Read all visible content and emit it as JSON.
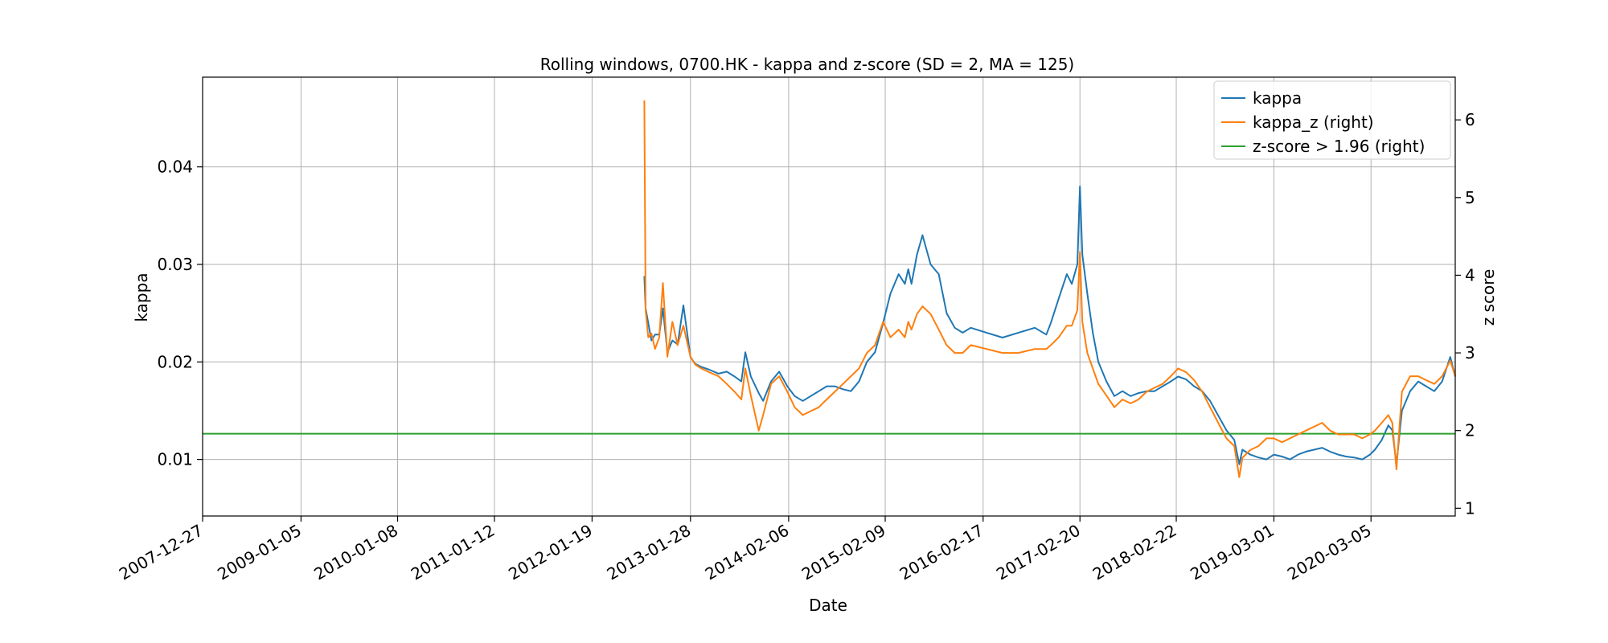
{
  "chart_data": {
    "type": "line",
    "title": "Rolling windows, 0700.HK - kappa and z-score (SD = 2, MA = 125)",
    "xlabel": "Date",
    "ylabel": "kappa",
    "y2label": "z score",
    "x_ticks": [
      "2007-12-27",
      "2009-01-05",
      "2010-01-08",
      "2011-01-12",
      "2012-01-19",
      "2013-01-28",
      "2014-02-06",
      "2015-02-09",
      "2016-02-17",
      "2017-02-20",
      "2018-02-22",
      "2019-03-01",
      "2020-03-05"
    ],
    "y_ticks": [
      "0.01",
      "0.02",
      "0.03",
      "0.04"
    ],
    "y2_ticks": [
      "1",
      "2",
      "3",
      "4",
      "5",
      "6"
    ],
    "xlim": [
      "2007-12-27",
      "2021-01-20"
    ],
    "ylim": [
      0.0042,
      0.0492
    ],
    "y2lim": [
      0.9,
      6.55
    ],
    "grid": true,
    "legend_position": "top-right",
    "colors": {
      "kappa": "#1f77b4",
      "kappa_z": "#ff7f0e",
      "threshold": "#2ca02c",
      "grid": "#b0b0b0"
    },
    "series": [
      {
        "name": "kappa",
        "axis": "left",
        "x": [
          "2012-08-05",
          "2012-08-10",
          "2012-08-20",
          "2012-09-01",
          "2012-09-15",
          "2012-10-01",
          "2012-10-15",
          "2012-11-01",
          "2012-11-20",
          "2012-12-10",
          "2013-01-01",
          "2013-01-28",
          "2013-02-15",
          "2013-03-10",
          "2013-04-10",
          "2013-05-15",
          "2013-06-15",
          "2013-07-15",
          "2013-08-10",
          "2013-08-25",
          "2013-09-15",
          "2013-10-15",
          "2013-11-01",
          "2013-12-01",
          "2014-01-01",
          "2014-02-01",
          "2014-03-01",
          "2014-04-01",
          "2014-05-01",
          "2014-06-01",
          "2014-07-01",
          "2014-08-01",
          "2014-09-01",
          "2014-10-01",
          "2014-11-01",
          "2014-12-01",
          "2015-01-01",
          "2015-02-01",
          "2015-03-01",
          "2015-04-01",
          "2015-04-25",
          "2015-05-08",
          "2015-05-20",
          "2015-06-10",
          "2015-07-01",
          "2015-08-01",
          "2015-09-01",
          "2015-10-01",
          "2015-11-01",
          "2015-12-01",
          "2016-01-01",
          "2016-03-01",
          "2016-05-01",
          "2016-07-01",
          "2016-09-01",
          "2016-10-15",
          "2016-11-01",
          "2016-12-01",
          "2017-01-01",
          "2017-01-20",
          "2017-02-10",
          "2017-02-20",
          "2017-03-01",
          "2017-03-20",
          "2017-04-10",
          "2017-05-01",
          "2017-06-01",
          "2017-07-01",
          "2017-08-01",
          "2017-09-01",
          "2017-10-01",
          "2017-11-01",
          "2017-12-01",
          "2018-01-01",
          "2018-02-01",
          "2018-03-01",
          "2018-04-01",
          "2018-05-01",
          "2018-06-01",
          "2018-07-01",
          "2018-08-01",
          "2018-09-01",
          "2018-10-01",
          "2018-10-20",
          "2018-11-01",
          "2018-12-01",
          "2019-01-01",
          "2019-02-01",
          "2019-03-01",
          "2019-04-01",
          "2019-05-01",
          "2019-06-01",
          "2019-07-01",
          "2019-08-01",
          "2019-09-01",
          "2019-10-01",
          "2019-11-01",
          "2019-12-01",
          "2020-01-01",
          "2020-02-01",
          "2020-03-01",
          "2020-03-20",
          "2020-04-15",
          "2020-05-10",
          "2020-05-25",
          "2020-06-10",
          "2020-07-01",
          "2020-08-01",
          "2020-09-01",
          "2020-10-01",
          "2020-11-01",
          "2020-12-01",
          "2021-01-01",
          "2021-01-20"
        ],
        "values": [
          0.0288,
          0.0255,
          0.024,
          0.0222,
          0.0228,
          0.0228,
          0.0255,
          0.021,
          0.0222,
          0.0218,
          0.0258,
          0.0205,
          0.0198,
          0.0195,
          0.0192,
          0.0188,
          0.019,
          0.0185,
          0.018,
          0.021,
          0.0185,
          0.0168,
          0.016,
          0.018,
          0.019,
          0.0175,
          0.0165,
          0.016,
          0.0165,
          0.017,
          0.0175,
          0.0175,
          0.0172,
          0.017,
          0.018,
          0.02,
          0.021,
          0.024,
          0.027,
          0.029,
          0.028,
          0.0295,
          0.028,
          0.031,
          0.033,
          0.03,
          0.029,
          0.025,
          0.0235,
          0.023,
          0.0235,
          0.023,
          0.0225,
          0.023,
          0.0235,
          0.0228,
          0.024,
          0.0265,
          0.029,
          0.028,
          0.03,
          0.038,
          0.031,
          0.027,
          0.023,
          0.02,
          0.018,
          0.0165,
          0.017,
          0.0165,
          0.0168,
          0.017,
          0.017,
          0.0175,
          0.018,
          0.0185,
          0.0182,
          0.0175,
          0.017,
          0.016,
          0.0145,
          0.013,
          0.012,
          0.0095,
          0.011,
          0.0105,
          0.0102,
          0.01,
          0.0105,
          0.0103,
          0.01,
          0.0105,
          0.0108,
          0.011,
          0.0112,
          0.0108,
          0.0105,
          0.0103,
          0.0102,
          0.01,
          0.0105,
          0.011,
          0.012,
          0.0135,
          0.013,
          0.0095,
          0.015,
          0.017,
          0.018,
          0.0175,
          0.017,
          0.018,
          0.0205,
          0.0185
        ]
      },
      {
        "name": "kappa_z (right)",
        "axis": "right",
        "x": [
          "2012-08-05",
          "2012-08-10",
          "2012-08-20",
          "2012-09-01",
          "2012-09-15",
          "2012-10-01",
          "2012-10-15",
          "2012-11-01",
          "2012-11-20",
          "2012-12-10",
          "2013-01-01",
          "2013-01-28",
          "2013-02-15",
          "2013-03-10",
          "2013-04-10",
          "2013-05-15",
          "2013-06-15",
          "2013-07-15",
          "2013-08-10",
          "2013-08-25",
          "2013-09-15",
          "2013-10-15",
          "2013-11-01",
          "2013-12-01",
          "2014-01-01",
          "2014-02-01",
          "2014-03-01",
          "2014-04-01",
          "2014-05-01",
          "2014-06-01",
          "2014-07-01",
          "2014-08-01",
          "2014-09-01",
          "2014-10-01",
          "2014-11-01",
          "2014-12-01",
          "2015-01-01",
          "2015-02-01",
          "2015-03-01",
          "2015-04-01",
          "2015-04-25",
          "2015-05-08",
          "2015-05-20",
          "2015-06-10",
          "2015-07-01",
          "2015-08-01",
          "2015-09-01",
          "2015-10-01",
          "2015-11-01",
          "2015-12-01",
          "2016-01-01",
          "2016-03-01",
          "2016-05-01",
          "2016-07-01",
          "2016-09-01",
          "2016-10-15",
          "2016-11-01",
          "2016-12-01",
          "2017-01-01",
          "2017-01-20",
          "2017-02-10",
          "2017-02-20",
          "2017-03-01",
          "2017-03-20",
          "2017-04-10",
          "2017-05-01",
          "2017-06-01",
          "2017-07-01",
          "2017-08-01",
          "2017-09-01",
          "2017-10-01",
          "2017-11-01",
          "2017-12-01",
          "2018-01-01",
          "2018-02-01",
          "2018-03-01",
          "2018-04-01",
          "2018-05-01",
          "2018-06-01",
          "2018-07-01",
          "2018-08-01",
          "2018-09-01",
          "2018-10-01",
          "2018-10-20",
          "2018-11-01",
          "2018-12-01",
          "2019-01-01",
          "2019-02-01",
          "2019-03-01",
          "2019-04-01",
          "2019-05-01",
          "2019-06-01",
          "2019-07-01",
          "2019-08-01",
          "2019-09-01",
          "2019-10-01",
          "2019-11-01",
          "2019-12-01",
          "2020-01-01",
          "2020-02-01",
          "2020-03-01",
          "2020-03-20",
          "2020-04-15",
          "2020-05-10",
          "2020-05-25",
          "2020-06-10",
          "2020-07-01",
          "2020-08-01",
          "2020-09-01",
          "2020-10-01",
          "2020-11-01",
          "2020-12-01",
          "2021-01-01",
          "2021-01-20"
        ],
        "values": [
          6.25,
          3.55,
          3.2,
          3.25,
          3.05,
          3.2,
          3.9,
          2.95,
          3.4,
          3.1,
          3.35,
          2.95,
          2.85,
          2.8,
          2.75,
          2.7,
          2.6,
          2.5,
          2.4,
          2.8,
          2.45,
          2.0,
          2.2,
          2.6,
          2.7,
          2.5,
          2.3,
          2.2,
          2.25,
          2.3,
          2.4,
          2.5,
          2.6,
          2.7,
          2.8,
          3.0,
          3.1,
          3.4,
          3.2,
          3.3,
          3.2,
          3.4,
          3.3,
          3.5,
          3.6,
          3.5,
          3.3,
          3.1,
          3.0,
          3.0,
          3.1,
          3.05,
          3.0,
          3.0,
          3.05,
          3.05,
          3.1,
          3.2,
          3.35,
          3.35,
          3.55,
          4.3,
          3.4,
          3.0,
          2.8,
          2.6,
          2.45,
          2.3,
          2.4,
          2.35,
          2.4,
          2.5,
          2.55,
          2.6,
          2.7,
          2.8,
          2.75,
          2.65,
          2.5,
          2.3,
          2.1,
          1.9,
          1.8,
          1.4,
          1.65,
          1.75,
          1.8,
          1.9,
          1.9,
          1.85,
          1.9,
          1.95,
          2.0,
          2.05,
          2.1,
          2.0,
          1.95,
          1.95,
          1.95,
          1.9,
          1.95,
          2.0,
          2.1,
          2.2,
          2.1,
          1.5,
          2.5,
          2.7,
          2.7,
          2.65,
          2.6,
          2.7,
          2.9,
          2.7
        ]
      },
      {
        "name": "z-score > 1.96 (right)",
        "axis": "right",
        "x": [
          "2007-12-27",
          "2021-01-20"
        ],
        "values": [
          1.96,
          1.96
        ]
      }
    ]
  }
}
